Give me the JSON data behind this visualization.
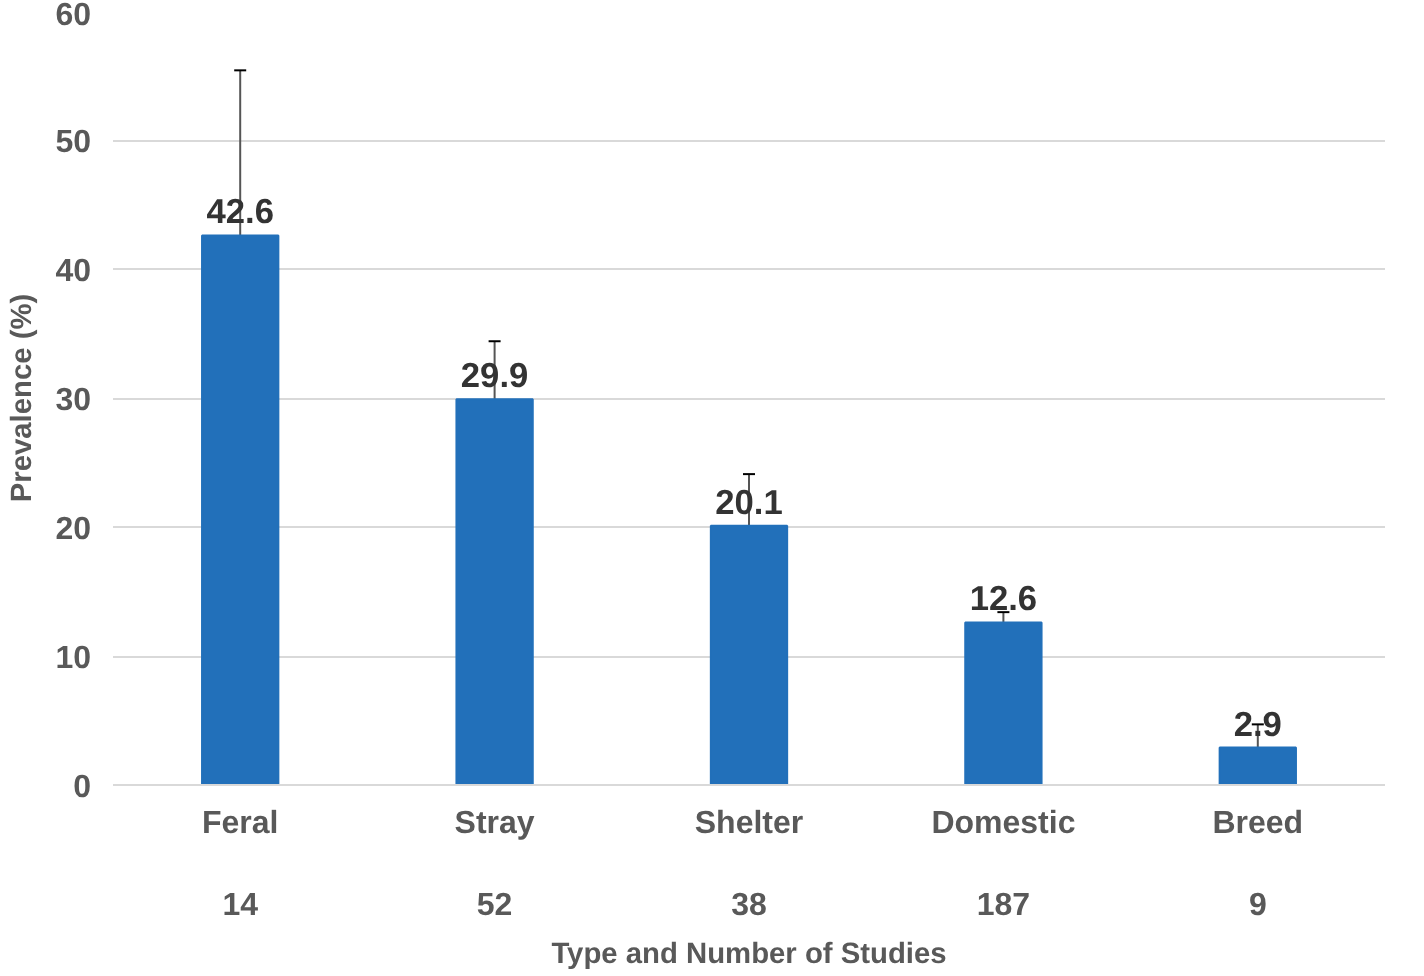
{
  "chart_data": {
    "type": "bar",
    "xlabel": "Type and Number of Studies",
    "ylabel": "Prevalence (%)",
    "categories": [
      "Feral\n\n14",
      "Stray\n\n52",
      "Shelter\n\n38",
      "Domestic\n\n187",
      "Breed\n\n9"
    ],
    "values": [
      42.6,
      29.9,
      20.1,
      12.6,
      2.9
    ],
    "errors": [
      [
        42.6,
        55.4
      ],
      [
        29.9,
        34.4
      ],
      [
        20.1,
        24.1
      ],
      [
        12.6,
        13.4
      ],
      [
        2.9,
        4.7
      ]
    ],
    "color": "#2270ba",
    "data_labels": true,
    "ylim": [
      0,
      60
    ],
    "yticks": [
      0,
      10,
      20,
      30,
      40,
      50,
      60
    ],
    "grid": "y"
  }
}
